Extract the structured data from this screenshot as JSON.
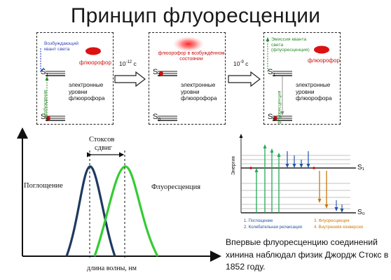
{
  "title": "Принцип флуоресценции",
  "panels": [
    {
      "note": "Возбуждающий квант света",
      "fluorophore": "флюорофор",
      "s1": "S",
      "s1_sub": "1",
      "s0": "S",
      "s0_sub": "0",
      "levels": "электронные уровни флюорофора",
      "vertical": "возбуждение"
    },
    {
      "fluorophore": "флюорофор в возбуждённом состоянии",
      "s1": "S",
      "s1_sub": "1",
      "s0": "S",
      "s0_sub": "0",
      "levels": "электронные уровни флюорофора"
    },
    {
      "note": "Эмиссия кванта света (флуоресценция)",
      "fluorophore": "флюорофор",
      "s1": "S",
      "s1_sub": "1",
      "s0": "S",
      "s0_sub": "0",
      "levels": "электронные уровни флюорофора",
      "vertical": "флуоресценция"
    }
  ],
  "arrows": [
    {
      "base": "10",
      "exp": "-12",
      "unit": " с"
    },
    {
      "base": "10",
      "exp": "-9",
      "unit": " с"
    }
  ],
  "spectrum": {
    "shift_label_1": "Стоксов",
    "shift_label_2": "сдвиг",
    "absorption_label": "Поглощение",
    "fluorescence_label": "Флуоресценция",
    "xlabel": "длина волны, нм",
    "absorption_color": "#1e3a5f",
    "fluorescence_color": "#33cc33"
  },
  "jablonski": {
    "ylabel": "Энергия",
    "s1": "S₁",
    "s0": "S₀",
    "legend": [
      {
        "text": "1. Поглощение",
        "color": "#2255aa"
      },
      {
        "text": "2. Колебательная релаксация",
        "color": "#2255aa"
      },
      {
        "text": "3. Флуоресценция",
        "color": "#cc7a00"
      },
      {
        "text": "4. Внутренняя конверсия",
        "color": "#cc7a00"
      }
    ]
  },
  "caption": "Впервые флуоресценцию соединений хинина наблюдал физик Джордж Стокс в 1852 году.",
  "colors": {
    "fluorophore": "#dd1111",
    "absorption_arrows": "#22aa55",
    "relaxation_arrows": "#2255aa",
    "emission_arrows": "#cc7a00"
  }
}
